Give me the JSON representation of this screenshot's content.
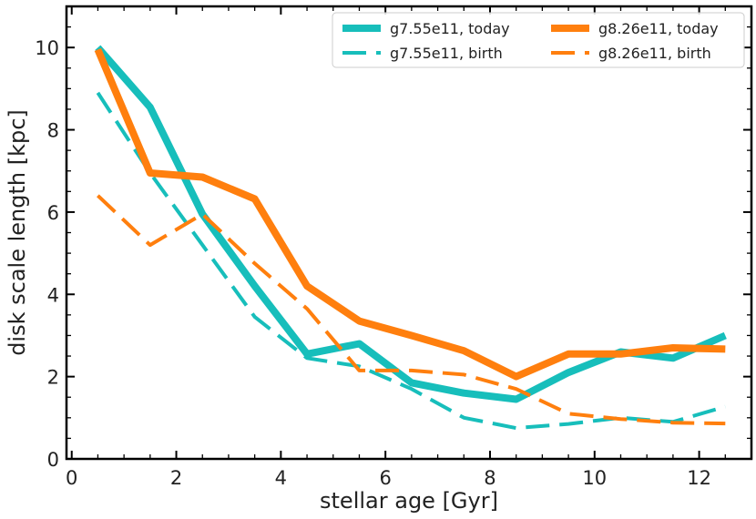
{
  "chart_data": {
    "type": "line",
    "title": "",
    "xlabel": "stellar age [Gyr]",
    "ylabel": "disk scale length [kpc]",
    "xlim": [
      -0.1,
      13.0
    ],
    "ylim": [
      0,
      11
    ],
    "xticks": [
      0,
      2,
      4,
      6,
      8,
      10,
      12
    ],
    "yticks": [
      0,
      2,
      4,
      6,
      8,
      10
    ],
    "grid": false,
    "legend_position": "top-right",
    "x": [
      0.5,
      1.5,
      2.5,
      3.5,
      4.5,
      5.5,
      6.5,
      7.5,
      8.5,
      9.5,
      10.5,
      11.5,
      12.5
    ],
    "series": [
      {
        "name": "g7.55e11, today",
        "color": "#17bebb",
        "style": "solid",
        "width": "thick",
        "values": [
          10.0,
          8.55,
          5.95,
          4.2,
          2.55,
          2.8,
          1.85,
          1.6,
          1.45,
          2.1,
          2.6,
          2.45,
          3.0
        ]
      },
      {
        "name": "g7.55e11, birth",
        "color": "#17bebb",
        "style": "dashed",
        "width": "thin",
        "values": [
          8.9,
          6.95,
          5.2,
          3.45,
          2.45,
          2.25,
          1.7,
          1.0,
          0.75,
          0.85,
          1.0,
          0.9,
          1.27
        ]
      },
      {
        "name": "g8.26e11, today",
        "color": "#ff7f0e",
        "style": "solid",
        "width": "thick",
        "values": [
          9.95,
          6.95,
          6.85,
          6.32,
          4.2,
          3.35,
          3.0,
          2.63,
          2.0,
          2.55,
          2.55,
          2.7,
          2.67
        ]
      },
      {
        "name": "g8.26e11, birth",
        "color": "#ff7f0e",
        "style": "dashed",
        "width": "thin",
        "values": [
          6.4,
          5.2,
          5.95,
          4.75,
          3.65,
          2.15,
          2.15,
          2.05,
          1.7,
          1.1,
          0.97,
          0.88,
          0.86
        ]
      }
    ]
  }
}
